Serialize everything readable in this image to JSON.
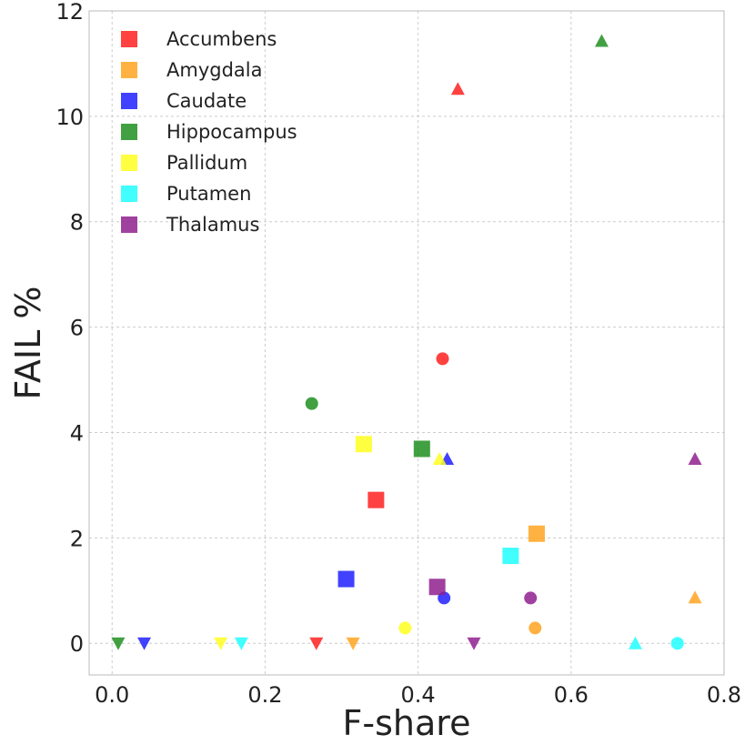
{
  "chart_data": {
    "type": "scatter",
    "xlabel": "F-share",
    "ylabel": "FAIL %",
    "xlim": [
      -0.03,
      0.8
    ],
    "ylim": [
      -0.6,
      12
    ],
    "xticks": [
      0.0,
      0.2,
      0.4,
      0.6,
      0.8
    ],
    "xtick_labels": [
      "0.0",
      "0.2",
      "0.4",
      "0.6",
      "0.8"
    ],
    "yticks": [
      0,
      2,
      4,
      6,
      8,
      10,
      12
    ],
    "ytick_labels": [
      "0",
      "2",
      "4",
      "6",
      "8",
      "10",
      "12"
    ],
    "grid": true,
    "legend_position": "top-left",
    "series": [
      {
        "name": "Accumbens",
        "color": "#ff2020",
        "points": [
          {
            "x": 0.345,
            "y": 2.72,
            "marker": "square"
          },
          {
            "x": 0.432,
            "y": 5.4,
            "marker": "circle"
          },
          {
            "x": 0.452,
            "y": 10.52,
            "marker": "triangle-up"
          },
          {
            "x": 0.267,
            "y": 0.0,
            "marker": "triangle-down"
          }
        ]
      },
      {
        "name": "Amygdala",
        "color": "#ffa520",
        "points": [
          {
            "x": 0.555,
            "y": 2.08,
            "marker": "square"
          },
          {
            "x": 0.553,
            "y": 0.29,
            "marker": "circle"
          },
          {
            "x": 0.762,
            "y": 0.87,
            "marker": "triangle-up"
          },
          {
            "x": 0.315,
            "y": 0.0,
            "marker": "triangle-down"
          }
        ]
      },
      {
        "name": "Caudate",
        "color": "#2020ff",
        "points": [
          {
            "x": 0.306,
            "y": 1.22,
            "marker": "square"
          },
          {
            "x": 0.434,
            "y": 0.86,
            "marker": "circle"
          },
          {
            "x": 0.438,
            "y": 3.5,
            "marker": "triangle-up"
          },
          {
            "x": 0.042,
            "y": 0.0,
            "marker": "triangle-down"
          }
        ]
      },
      {
        "name": "Hippocampus",
        "color": "#208f20",
        "points": [
          {
            "x": 0.405,
            "y": 3.69,
            "marker": "square"
          },
          {
            "x": 0.261,
            "y": 4.55,
            "marker": "circle"
          },
          {
            "x": 0.64,
            "y": 11.43,
            "marker": "triangle-up"
          },
          {
            "x": 0.008,
            "y": 0.0,
            "marker": "triangle-down"
          }
        ]
      },
      {
        "name": "Pallidum",
        "color": "#ffff20",
        "points": [
          {
            "x": 0.329,
            "y": 3.78,
            "marker": "square"
          },
          {
            "x": 0.383,
            "y": 0.29,
            "marker": "circle"
          },
          {
            "x": 0.428,
            "y": 3.5,
            "marker": "triangle-up"
          },
          {
            "x": 0.142,
            "y": 0.0,
            "marker": "triangle-down"
          }
        ]
      },
      {
        "name": "Putamen",
        "color": "#20ffff",
        "points": [
          {
            "x": 0.521,
            "y": 1.66,
            "marker": "square"
          },
          {
            "x": 0.739,
            "y": 0.0,
            "marker": "circle"
          },
          {
            "x": 0.684,
            "y": 0.0,
            "marker": "triangle-up"
          },
          {
            "x": 0.169,
            "y": 0.0,
            "marker": "triangle-down"
          }
        ]
      },
      {
        "name": "Thalamus",
        "color": "#8f208f",
        "points": [
          {
            "x": 0.425,
            "y": 1.07,
            "marker": "square"
          },
          {
            "x": 0.547,
            "y": 0.86,
            "marker": "circle"
          },
          {
            "x": 0.762,
            "y": 3.5,
            "marker": "triangle-up"
          },
          {
            "x": 0.473,
            "y": 0.0,
            "marker": "triangle-down"
          }
        ]
      }
    ]
  }
}
